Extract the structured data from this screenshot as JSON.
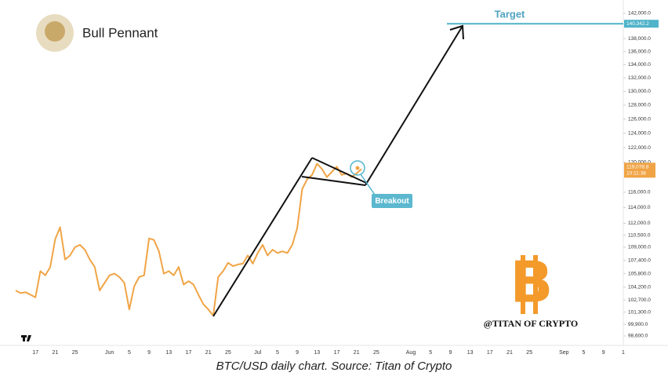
{
  "chart_data": {
    "type": "line",
    "title": "Bull Pennant",
    "caption": "BTC/USD daily chart. Source: Titan of Crypto",
    "watermark": "@TITAN OF CRYPTO",
    "target_text": "Target",
    "target_price": 140342.2,
    "target_price_label": "140,342.2",
    "breakout_text": "Breakout",
    "last_price_label": "119,078.8",
    "countdown": "10:11:38",
    "color": "#f0a445",
    "log_scale": true,
    "grid": false,
    "categories": [
      null,
      null,
      null,
      null,
      "17",
      null,
      null,
      null,
      "21",
      null,
      null,
      null,
      "25",
      null,
      null,
      null,
      null,
      null,
      null,
      "Jun",
      null,
      null,
      null,
      "5",
      null,
      null,
      null,
      "9",
      null,
      null,
      null,
      "13",
      null,
      null,
      null,
      "17",
      null,
      null,
      null,
      "21",
      null,
      null,
      null,
      "25",
      null,
      null,
      null,
      null,
      null,
      "Jul",
      null,
      null,
      null,
      "5",
      null,
      null,
      null,
      "9",
      null,
      null,
      null,
      "13",
      null,
      null,
      null,
      "17",
      null,
      null,
      null,
      "21",
      null,
      null,
      null,
      "25",
      null,
      null,
      null,
      null,
      null,
      null,
      "Aug",
      null,
      null,
      null,
      "5",
      null,
      null,
      null,
      "9",
      null,
      null,
      null,
      "13",
      null,
      null,
      null,
      "17",
      null,
      null,
      null,
      "21",
      null,
      null,
      null,
      "25",
      null,
      null,
      null,
      null,
      null,
      null,
      "Sep",
      null,
      null,
      null,
      "5",
      null,
      null,
      null,
      "9",
      null,
      null,
      null,
      "1"
    ],
    "values": [
      103800,
      103500,
      103600,
      103300,
      103000,
      106100,
      105600,
      106600,
      110000,
      111500,
      107500,
      108000,
      109000,
      109300,
      108700,
      107500,
      106600,
      103800,
      104700,
      105600,
      105800,
      105400,
      104700,
      101600,
      104300,
      105400,
      105600,
      110100,
      109900,
      108500,
      105800,
      106100,
      105600,
      106600,
      104500,
      104900,
      104500,
      103300,
      102200,
      101600,
      100900,
      105400,
      106100,
      107100,
      106700,
      106900,
      107000,
      108000,
      107000,
      108300,
      109300,
      108000,
      108700,
      108300,
      108500,
      108300,
      109300,
      111400,
      116400,
      117700,
      118300,
      119800,
      119100,
      118000,
      118700,
      119400,
      118300,
      118500,
      118000,
      118500,
      119078.8,
      null,
      null,
      null,
      null,
      null,
      null,
      null,
      null,
      null,
      null,
      null,
      null,
      null,
      null,
      null,
      null,
      null,
      null,
      null,
      null,
      null,
      null,
      null,
      null,
      null,
      null,
      null,
      null,
      null,
      null,
      null,
      null,
      null,
      null,
      null,
      null,
      null,
      null,
      null,
      null,
      null,
      null,
      null,
      null,
      null,
      null,
      null,
      null,
      null,
      null,
      null,
      null,
      null
    ],
    "ylim": [
      97556,
      144158
    ],
    "yticks": [
      {
        "value": 142000,
        "label": "142,000.0"
      },
      {
        "value": 138000,
        "label": "138,000.0"
      },
      {
        "value": 136000,
        "label": "136,000.0"
      },
      {
        "value": 134000,
        "label": "134,000.0"
      },
      {
        "value": 132000,
        "label": "132,000.0"
      },
      {
        "value": 130000,
        "label": "130,000.0"
      },
      {
        "value": 128000,
        "label": "128,000.0"
      },
      {
        "value": 126000,
        "label": "126,000.0"
      },
      {
        "value": 124000,
        "label": "124,000.0"
      },
      {
        "value": 122000,
        "label": "122,000.0"
      },
      {
        "value": 120000,
        "label": "120,000.0"
      },
      {
        "value": 116000,
        "label": "116,000.0"
      },
      {
        "value": 114000,
        "label": "114,000.0"
      },
      {
        "value": 112000,
        "label": "112,000.0"
      },
      {
        "value": 110500,
        "label": "110,500.0"
      },
      {
        "value": 109000,
        "label": "109,000.0"
      },
      {
        "value": 107400,
        "label": "107,400.0"
      },
      {
        "value": 105800,
        "label": "105,800.0"
      },
      {
        "value": 104200,
        "label": "104,200.0"
      },
      {
        "value": 102700,
        "label": "102,700.0"
      },
      {
        "value": 101300,
        "label": "101,300.0"
      },
      {
        "value": 99900,
        "label": "99,900.0"
      },
      {
        "value": 98600,
        "label": "98,600.0"
      }
    ]
  }
}
